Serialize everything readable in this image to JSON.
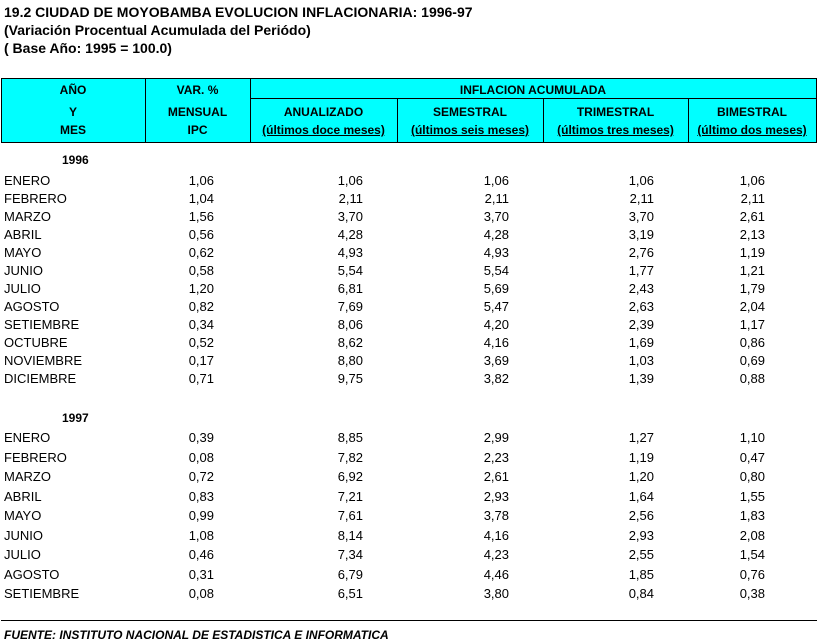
{
  "title": {
    "line1": "19.2 CIUDAD DE MOYOBAMBA EVOLUCION INFLACIONARIA: 1996-97",
    "line2": "(Variación Procentual Acumulada del Periódo)",
    "line3": "( Base Año: 1995 = 100.0)"
  },
  "header": {
    "col1": [
      "AÑO",
      "Y",
      "MES"
    ],
    "col2": [
      "VAR. %",
      "MENSUAL",
      "IPC"
    ],
    "group": "INFLACION ACUMULADA",
    "cols": [
      [
        "ANUALIZADO",
        "(últimos doce meses)"
      ],
      [
        "SEMESTRAL",
        "(últimos seis meses)"
      ],
      [
        "TRIMESTRAL",
        "(últimos tres meses)"
      ],
      [
        "BIMESTRAL",
        "(último dos meses)"
      ]
    ]
  },
  "sections": [
    {
      "year": "1996",
      "rows": [
        [
          "ENERO",
          "1,06",
          "1,06",
          "1,06",
          "1,06",
          "1,06"
        ],
        [
          "FEBRERO",
          "1,04",
          "2,11",
          "2,11",
          "2,11",
          "2,11"
        ],
        [
          "MARZO",
          "1,56",
          "3,70",
          "3,70",
          "3,70",
          "2,61"
        ],
        [
          "ABRIL",
          "0,56",
          "4,28",
          "4,28",
          "3,19",
          "2,13"
        ],
        [
          "MAYO",
          "0,62",
          "4,93",
          "4,93",
          "2,76",
          "1,19"
        ],
        [
          "JUNIO",
          "0,58",
          "5,54",
          "5,54",
          "1,77",
          "1,21"
        ],
        [
          "JULIO",
          "1,20",
          "6,81",
          "5,69",
          "2,43",
          "1,79"
        ],
        [
          "AGOSTO",
          "0,82",
          "7,69",
          "5,47",
          "2,63",
          "2,04"
        ],
        [
          "SETIEMBRE",
          "0,34",
          "8,06",
          "4,20",
          "2,39",
          "1,17"
        ],
        [
          "OCTUBRE",
          "0,52",
          "8,62",
          "4,16",
          "1,69",
          "0,86"
        ],
        [
          "NOVIEMBRE",
          "0,17",
          "8,80",
          "3,69",
          "1,03",
          "0,69"
        ],
        [
          "DICIEMBRE",
          "0,71",
          "9,75",
          "3,82",
          "1,39",
          "0,88"
        ]
      ]
    },
    {
      "year": "1997",
      "rows": [
        [
          "ENERO",
          "0,39",
          "8,85",
          "2,99",
          "1,27",
          "1,10"
        ],
        [
          "FEBRERO",
          "0,08",
          "7,82",
          "2,23",
          "1,19",
          "0,47"
        ],
        [
          "MARZO",
          "0,72",
          "6,92",
          "2,61",
          "1,20",
          "0,80"
        ],
        [
          "ABRIL",
          "0,83",
          "7,21",
          "2,93",
          "1,64",
          "1,55"
        ],
        [
          "MAYO",
          "0,99",
          "7,61",
          "3,78",
          "2,56",
          "1,83"
        ],
        [
          "JUNIO",
          "1,08",
          "8,14",
          "4,16",
          "2,93",
          "2,08"
        ],
        [
          "JULIO",
          "0,46",
          "7,34",
          "4,23",
          "2,55",
          "1,54"
        ],
        [
          "AGOSTO",
          "0,31",
          "6,79",
          "4,46",
          "1,85",
          "0,76"
        ],
        [
          "SETIEMBRE",
          "0,08",
          "6,51",
          "3,80",
          "0,84",
          "0,38"
        ]
      ]
    }
  ],
  "source": "FUENTE:  INSTITUTO NACIONAL DE ESTADISTICA E INFORMATICA"
}
